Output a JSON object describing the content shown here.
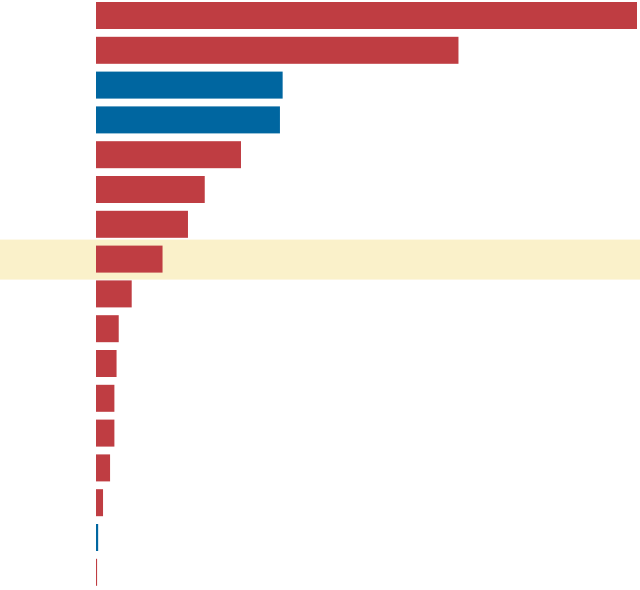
{
  "chart_data": {
    "type": "bar",
    "orientation": "horizontal",
    "highlighted_index": 7,
    "highlight_color": "#faf1ca",
    "colors": {
      "red": "#bf3d42",
      "blue": "#0066a0"
    },
    "xlim": [
      0,
      100
    ],
    "values": [
      100,
      67,
      34.5,
      34,
      26.8,
      20.1,
      17,
      12.3,
      6.6,
      4.2,
      3.8,
      3.4,
      3.4,
      2.6,
      1.3,
      0.4,
      0.2
    ],
    "series_colors": [
      "red",
      "red",
      "blue",
      "blue",
      "red",
      "red",
      "red",
      "red",
      "red",
      "red",
      "red",
      "red",
      "red",
      "red",
      "red",
      "blue",
      "red"
    ],
    "title": "",
    "xlabel": "",
    "ylabel": ""
  }
}
